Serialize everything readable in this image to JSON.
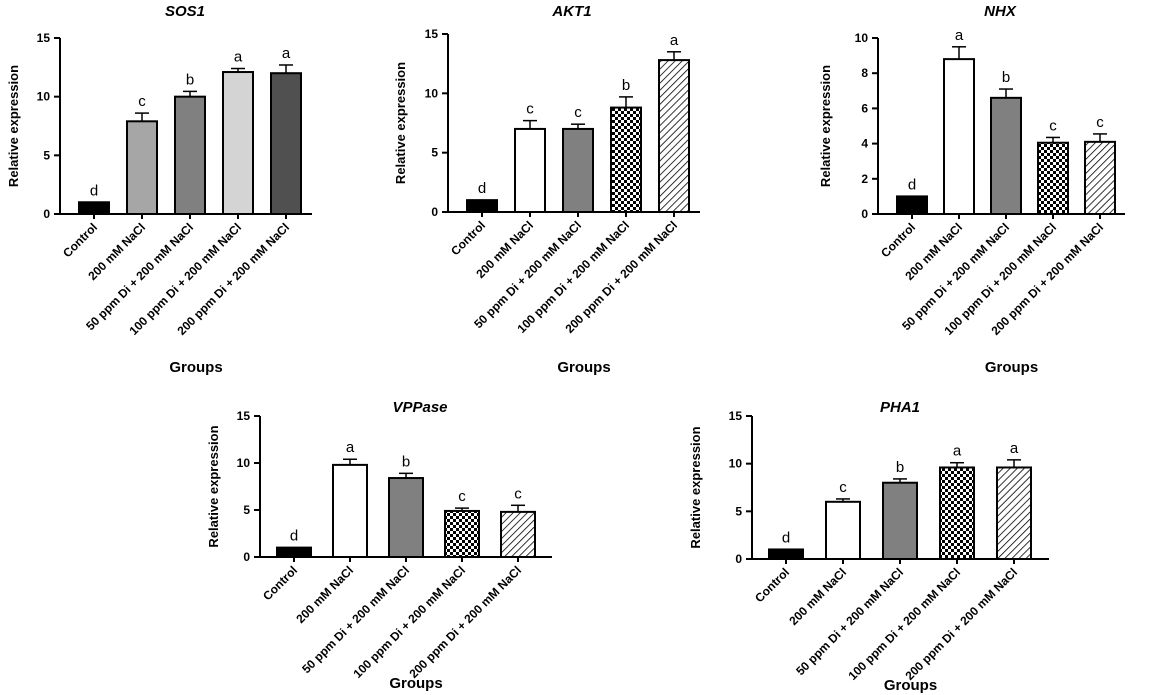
{
  "chart_data": [
    {
      "type": "bar",
      "title": "SOS1",
      "ylabel": "Relative expression",
      "xlabel": "Groups",
      "ylim": [
        0,
        15
      ],
      "yticks": [
        0,
        5,
        10,
        15
      ],
      "categories": [
        "Control",
        "200 mM NaCl",
        "50 ppm Di + 200 mM NaCl",
        "100 ppm Di + 200 mM NaCl",
        "200 ppm Di + 200 mM NaCl"
      ],
      "values": [
        1.0,
        7.9,
        10.0,
        12.1,
        12.0
      ],
      "errors": [
        0,
        0.7,
        0.45,
        0.3,
        0.7
      ],
      "significance": [
        "d",
        "c",
        "b",
        "a",
        "a"
      ],
      "fills": [
        "black",
        "light-gray",
        "gray",
        "lighter-gray",
        "dark-gray"
      ],
      "grid": false
    },
    {
      "type": "bar",
      "title": "AKT1",
      "ylabel": "Relative expression",
      "xlabel": "Groups",
      "ylim": [
        0,
        15
      ],
      "yticks": [
        0,
        5,
        10,
        15
      ],
      "categories": [
        "Control",
        "200 mM NaCl",
        "50 ppm Di + 200 mM NaCl",
        "100 ppm Di + 200 mM NaCl",
        "200 ppm Di + 200 mM NaCl"
      ],
      "values": [
        1.0,
        7.0,
        7.0,
        8.8,
        12.8
      ],
      "errors": [
        0,
        0.7,
        0.4,
        0.9,
        0.7
      ],
      "significance": [
        "d",
        "c",
        "c",
        "b",
        "a"
      ],
      "fills": [
        "black",
        "white",
        "gray",
        "checker",
        "hatch"
      ],
      "grid": false
    },
    {
      "type": "bar",
      "title": "NHX",
      "ylabel": "Relative expression",
      "xlabel": "Groups",
      "ylim": [
        0,
        10
      ],
      "yticks": [
        0,
        2,
        4,
        6,
        8,
        10
      ],
      "categories": [
        "Control",
        "200 mM NaCl",
        "50 ppm Di + 200 mM NaCl",
        "100 ppm Di + 200 mM NaCl",
        "200 ppm Di + 200 mM NaCl"
      ],
      "values": [
        1.0,
        8.8,
        6.6,
        4.05,
        4.1
      ],
      "errors": [
        0,
        0.7,
        0.5,
        0.3,
        0.45
      ],
      "significance": [
        "d",
        "a",
        "b",
        "c",
        "c"
      ],
      "fills": [
        "black",
        "white",
        "gray",
        "checker",
        "hatch"
      ],
      "grid": false
    },
    {
      "type": "bar",
      "title": "VPPase",
      "ylabel": "Relative expression",
      "xlabel": "Groups",
      "ylim": [
        0,
        15
      ],
      "yticks": [
        0,
        5,
        10,
        15
      ],
      "categories": [
        "Control",
        "200 mM NaCl",
        "50 ppm Di + 200 mM NaCl",
        "100 ppm Di + 200 mM NaCl",
        "200 ppm Di + 200 mM NaCl"
      ],
      "values": [
        1.0,
        9.8,
        8.4,
        4.9,
        4.8
      ],
      "errors": [
        0,
        0.6,
        0.5,
        0.3,
        0.7
      ],
      "significance": [
        "d",
        "a",
        "b",
        "c",
        "c"
      ],
      "fills": [
        "black",
        "white",
        "gray",
        "checker",
        "hatch"
      ],
      "grid": false
    },
    {
      "type": "bar",
      "title": "PHA1",
      "ylabel": "Relative expression",
      "xlabel": "Groups",
      "ylim": [
        0,
        15
      ],
      "yticks": [
        0,
        5,
        10,
        15
      ],
      "categories": [
        "Control",
        "200 mM NaCl",
        "50 ppm Di + 200 mM NaCl",
        "100 ppm Di + 200 mM NaCl",
        "200 ppm Di + 200 mM NaCl"
      ],
      "values": [
        1.0,
        6.0,
        8.0,
        9.6,
        9.6
      ],
      "errors": [
        0,
        0.3,
        0.4,
        0.5,
        0.8
      ],
      "significance": [
        "d",
        "c",
        "b",
        "a",
        "a"
      ],
      "fills": [
        "black",
        "white",
        "gray",
        "checker",
        "hatch"
      ],
      "grid": false
    }
  ]
}
